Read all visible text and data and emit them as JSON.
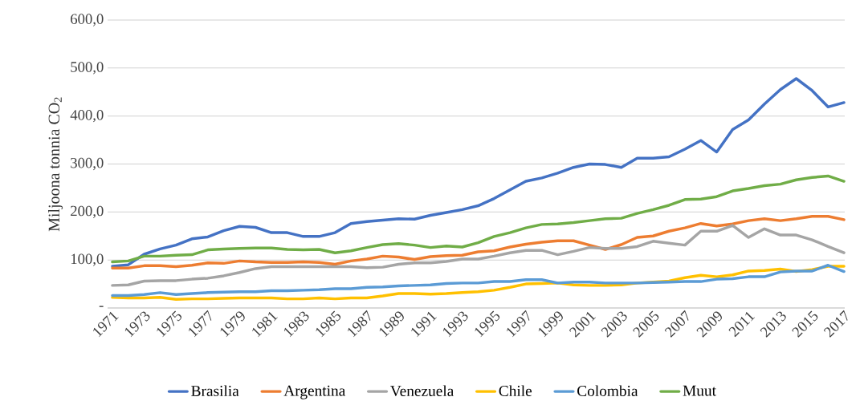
{
  "chart_data": {
    "type": "line",
    "ylabel": "Miljoona tonnia CO$_{2}$",
    "categories": [
      "1971",
      null,
      "1973",
      null,
      "1975",
      null,
      "1977",
      null,
      "1979",
      null,
      "1981",
      null,
      "1983",
      null,
      "1985",
      null,
      "1987",
      null,
      "1989",
      null,
      "1991",
      null,
      "1993",
      null,
      "1995",
      null,
      "1997",
      null,
      "1999",
      null,
      "2001",
      null,
      "2003",
      null,
      "2005",
      null,
      "2007",
      null,
      "2009",
      null,
      "2011",
      null,
      "2013",
      null,
      "2015",
      null,
      "2017"
    ],
    "series": [
      {
        "name": "Brasilia",
        "color": "#4472c4",
        "values": [
          87,
          90,
          112,
          123,
          131,
          144,
          148,
          161,
          170,
          168,
          157,
          157,
          149,
          149,
          157,
          176,
          180,
          183,
          186,
          185,
          193,
          199,
          205,
          213,
          228,
          246,
          264,
          271,
          281,
          293,
          300,
          299,
          293,
          312,
          312,
          315,
          331,
          349,
          325,
          372,
          392,
          425,
          455,
          478,
          453,
          419,
          428
        ]
      },
      {
        "name": "Argentina",
        "color": "#ed7d31",
        "values": [
          83,
          83,
          88,
          88,
          86,
          89,
          94,
          93,
          98,
          96,
          95,
          95,
          96,
          95,
          91,
          98,
          102,
          108,
          106,
          101,
          107,
          109,
          110,
          117,
          119,
          127,
          133,
          137,
          140,
          140,
          131,
          122,
          132,
          147,
          150,
          160,
          167,
          176,
          171,
          175,
          182,
          186,
          182,
          186,
          191,
          191,
          184
        ]
      },
      {
        "name": "Venezuela",
        "color": "#a5a5a5",
        "values": [
          47,
          48,
          56,
          57,
          57,
          60,
          62,
          67,
          74,
          82,
          86,
          86,
          86,
          86,
          86,
          86,
          84,
          85,
          91,
          94,
          94,
          97,
          102,
          102,
          108,
          115,
          120,
          120,
          111,
          118,
          126,
          124,
          124,
          128,
          139,
          135,
          131,
          160,
          160,
          172,
          147,
          165,
          152,
          152,
          142,
          128,
          115
        ]
      },
      {
        "name": "Chile",
        "color": "#ffc000",
        "values": [
          22,
          21,
          21,
          22,
          18,
          19,
          19,
          20,
          21,
          21,
          21,
          19,
          19,
          21,
          19,
          21,
          21,
          25,
          30,
          30,
          29,
          30,
          32,
          34,
          37,
          43,
          50,
          51,
          52,
          48,
          47,
          47,
          48,
          52,
          54,
          56,
          63,
          68,
          65,
          69,
          77,
          78,
          81,
          76,
          80,
          87,
          87
        ]
      },
      {
        "name": "Colombia",
        "color": "#5b9bd5",
        "values": [
          26,
          26,
          28,
          32,
          28,
          30,
          32,
          33,
          34,
          34,
          36,
          36,
          37,
          38,
          40,
          40,
          43,
          44,
          46,
          47,
          48,
          51,
          52,
          52,
          55,
          55,
          59,
          59,
          52,
          54,
          54,
          52,
          52,
          52,
          53,
          54,
          55,
          55,
          60,
          61,
          65,
          65,
          75,
          77,
          77,
          89,
          76
        ]
      },
      {
        "name": "Muut",
        "color": "#70ad47",
        "values": [
          96,
          98,
          108,
          108,
          110,
          111,
          121,
          123,
          124,
          125,
          125,
          122,
          121,
          122,
          115,
          119,
          126,
          132,
          134,
          131,
          126,
          129,
          127,
          136,
          149,
          157,
          167,
          174,
          175,
          178,
          182,
          186,
          187,
          197,
          205,
          214,
          226,
          227,
          232,
          244,
          249,
          255,
          258,
          267,
          272,
          275,
          264
        ]
      }
    ],
    "ylim": [
      0,
      600
    ],
    "yticks": [
      {
        "value": 0,
        "label": "-"
      },
      {
        "value": 100,
        "label": "100,0"
      },
      {
        "value": 200,
        "label": "200,0"
      },
      {
        "value": 300,
        "label": "300,0"
      },
      {
        "value": 400,
        "label": "400,0"
      },
      {
        "value": 500,
        "label": "500,0"
      },
      {
        "value": 600,
        "label": "600,0"
      }
    ],
    "grid": "y",
    "legend": "bottom"
  }
}
